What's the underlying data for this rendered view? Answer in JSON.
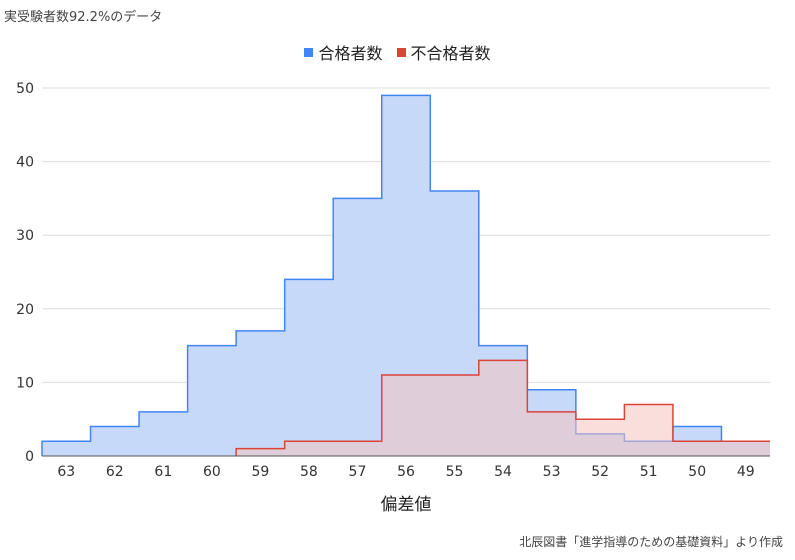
{
  "header": {
    "subtitle": "実受験者数92.2%のデータ"
  },
  "source": "北辰図書「進学指導のための基礎資料」より作成",
  "chart_data": {
    "type": "area",
    "subtitle": "実受験者数92.2%のデータ",
    "xlabel": "偏差値",
    "ylabel": "",
    "ylim": [
      0,
      50
    ],
    "yticks": [
      0,
      10,
      20,
      30,
      40,
      50
    ],
    "grid": true,
    "legend_position": "top",
    "categories": [
      "63",
      "62",
      "61",
      "60",
      "59",
      "58",
      "57",
      "56",
      "55",
      "54",
      "53",
      "52",
      "51",
      "50",
      "49"
    ],
    "series": [
      {
        "name": "合格者数",
        "color": "#4285f4",
        "fill": "#c6d9f8",
        "values": [
          2,
          4,
          6,
          15,
          17,
          24,
          35,
          49,
          36,
          15,
          9,
          3,
          2,
          4,
          2
        ]
      },
      {
        "name": "不合格者数",
        "color": "#db4437",
        "fill": "#f4c2bf",
        "values": [
          null,
          null,
          null,
          null,
          1,
          2,
          2,
          11,
          11,
          13,
          6,
          5,
          7,
          2,
          2
        ]
      }
    ]
  }
}
